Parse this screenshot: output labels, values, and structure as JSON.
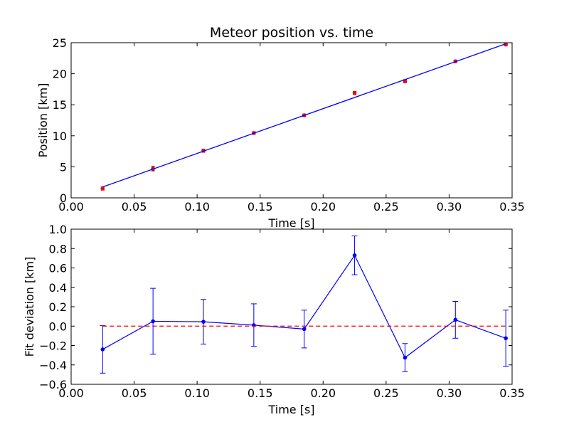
{
  "chart_data": [
    {
      "type": "scatter",
      "title": "Meteor position vs. time",
      "xlabel": "Time [s]",
      "ylabel": "Position [km]",
      "xlim": [
        0.0,
        0.35
      ],
      "ylim": [
        0,
        25
      ],
      "xticks": [
        "0.00",
        "0.05",
        "0.10",
        "0.15",
        "0.20",
        "0.25",
        "0.30",
        "0.35"
      ],
      "yticks": [
        "0",
        "5",
        "10",
        "15",
        "20",
        "25"
      ],
      "grid": false,
      "series": [
        {
          "kind": "points-with-error",
          "color": "#ff0000",
          "x": [
            0.025,
            0.065,
            0.105,
            0.145,
            0.185,
            0.225,
            0.265,
            0.305,
            0.345
          ],
          "y": [
            1.5,
            4.7,
            7.6,
            10.45,
            13.3,
            16.9,
            18.8,
            22.0,
            24.7
          ],
          "yerr": [
            0.25,
            0.35,
            0.25,
            0.2,
            0.2,
            0.25,
            0.25,
            0.2,
            0.2
          ]
        },
        {
          "kind": "fit-line",
          "color": "#0000ff",
          "x": [
            0.025,
            0.345
          ],
          "y": [
            1.75,
            24.83
          ]
        }
      ]
    },
    {
      "type": "line",
      "title": "",
      "xlabel": "Time [s]",
      "ylabel": "Fit deviation [km]",
      "xlim": [
        0.0,
        0.35
      ],
      "ylim": [
        -0.6,
        1.0
      ],
      "xticks": [
        "0.00",
        "0.05",
        "0.10",
        "0.15",
        "0.20",
        "0.25",
        "0.30",
        "0.35"
      ],
      "yticks": [
        "−0.6",
        "−0.4",
        "−0.2",
        "0.0",
        "0.2",
        "0.4",
        "0.6",
        "0.8",
        "1.0"
      ],
      "grid": false,
      "series": [
        {
          "kind": "line-with-error",
          "color": "#0000ff",
          "x": [
            0.025,
            0.065,
            0.105,
            0.145,
            0.185,
            0.225,
            0.265,
            0.305,
            0.345
          ],
          "y": [
            -0.24,
            0.05,
            0.045,
            0.01,
            -0.03,
            0.73,
            -0.325,
            0.065,
            -0.125
          ],
          "yerr": [
            0.245,
            0.34,
            0.23,
            0.22,
            0.195,
            0.2,
            0.145,
            0.19,
            0.29
          ]
        },
        {
          "kind": "reference-line",
          "color": "#ff0000",
          "dashed": true,
          "x": [
            0.025,
            0.345
          ],
          "y": [
            0.0,
            0.0
          ]
        }
      ]
    }
  ]
}
